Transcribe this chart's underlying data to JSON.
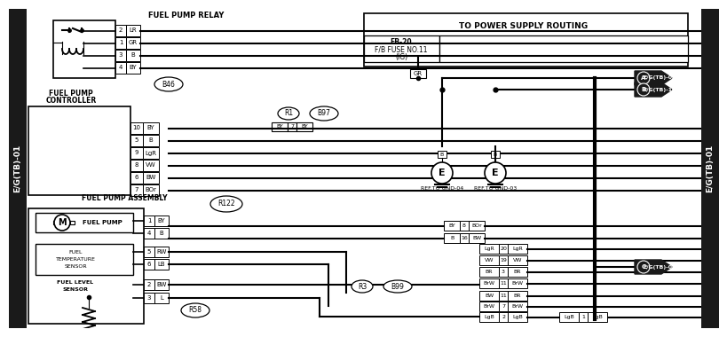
{
  "bg_color": "#ffffff",
  "sidebar_bg": "#1a1a1a",
  "left_sidebar_label": "E/G(TB)-01",
  "right_sidebar_label": "E/G(TB)-01",
  "relay_label": "FUEL PUMP RELAY",
  "relay_pins": [
    {
      "pin": "2",
      "wire": "LR"
    },
    {
      "pin": "1",
      "wire": "GR"
    },
    {
      "pin": "3",
      "wire": "B"
    },
    {
      "pin": "4",
      "wire": "BY"
    }
  ],
  "relay_connector": "B46",
  "controller_label1": "FUEL PUMP",
  "controller_label2": "CONTROLLER",
  "controller_pins": [
    {
      "pin": "10",
      "wire": "BY"
    },
    {
      "pin": "5",
      "wire": "B"
    },
    {
      "pin": "9",
      "wire": "LgR"
    },
    {
      "pin": "8",
      "wire": "VW"
    },
    {
      "pin": "6",
      "wire": "BW"
    },
    {
      "pin": "7",
      "wire": "BOr"
    }
  ],
  "junction_R1": "R1",
  "junction_B97": "B97",
  "junction_R122": "R122",
  "junction_R58": "R58",
  "power_box_label": "TO POWER SUPPLY ROUTING",
  "fuse_label1": "FB-20",
  "fuse_label2": "F/B FUSE NO.11",
  "fuse_label3": "(IG)",
  "conn_A_label": "E/G(TB)-03",
  "conn_B_label": "E/G(TB)-10",
  "conn_C_label": "E/G(TB)-02",
  "assembly_label": "FUEL PUMP ASSEMBLY",
  "pump_label": "FUEL PUMP",
  "temp_sensor_label1": "FUEL",
  "temp_sensor_label2": "TEMPERATURE",
  "temp_sensor_label3": "SENSOR",
  "level_sensor_label1": "FUEL LEVEL",
  "level_sensor_label2": "SENSOR",
  "assembly_pins": [
    {
      "pin": "1",
      "wire": "BY"
    },
    {
      "pin": "4",
      "wire": "B"
    },
    {
      "pin": "5",
      "wire": "RW"
    },
    {
      "pin": "6",
      "wire": "LB"
    },
    {
      "pin": "2",
      "wire": "BW"
    },
    {
      "pin": "3",
      "wire": "L"
    }
  ],
  "right_connector_top_pins": [
    {
      "wire_l": "BY",
      "pin": "8",
      "wire_r": "BOr"
    },
    {
      "wire_l": "B",
      "pin": "16",
      "wire_r": "BW"
    }
  ],
  "right_connector_mid_pins": [
    {
      "wire_l": "LgR",
      "pin": "20",
      "wire_r": "LgR"
    },
    {
      "wire_l": "VW",
      "pin": "19",
      "wire_r": "VW"
    },
    {
      "wire_l": "BR",
      "pin": "3",
      "wire_r": "BR"
    },
    {
      "wire_l": "BrW",
      "pin": "11",
      "wire_r": "BrW"
    }
  ],
  "right_connector_bot_pins": [
    {
      "wire_l": "BW",
      "pin": "11",
      "wire_r": "BR"
    },
    {
      "wire_l": "BrW",
      "pin": "7",
      "wire_r": "BrW"
    },
    {
      "wire_l": "LgB",
      "pin": "2",
      "wire_r": "LgB"
    }
  ],
  "right_connector_last_pins": [
    {
      "wire_l": "LgB",
      "pin": "1",
      "wire_r": "LgB"
    }
  ],
  "junction_R3": "R3",
  "junction_B99": "B99",
  "gnd_ref_04": "REF.TO GND-04",
  "gnd_ref_03": "REF.TO GND-03"
}
